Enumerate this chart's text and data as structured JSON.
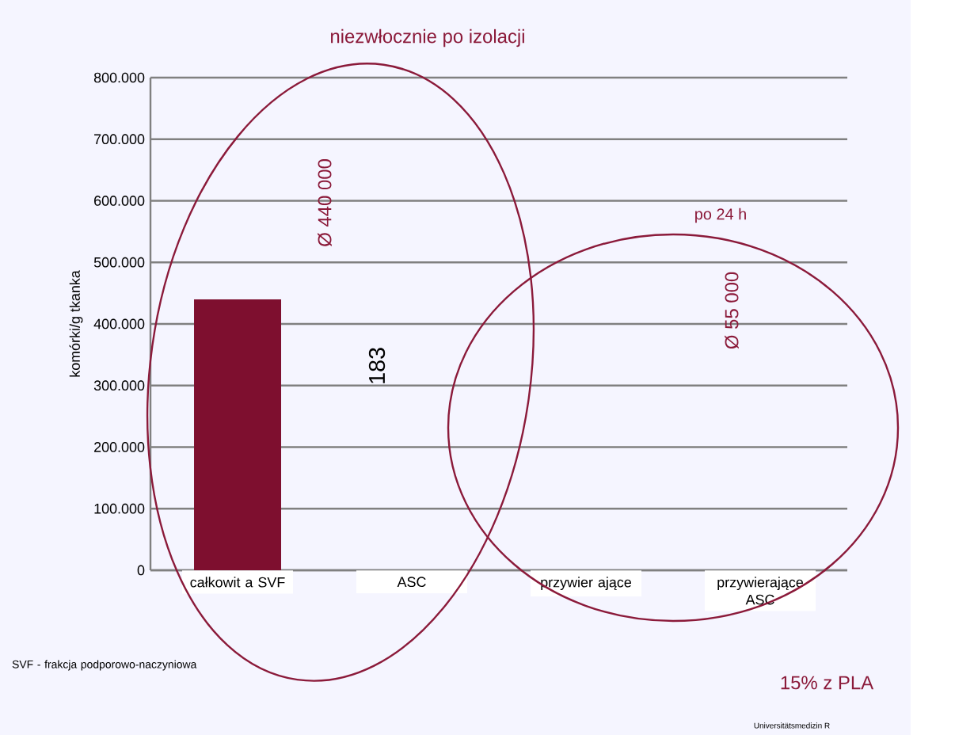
{
  "chart_data": {
    "type": "bar",
    "ylabel": "komórki/g tkanka",
    "categories": [
      "całkowit a SVF",
      "ASC",
      "przywier ające",
      "przywierające ASC"
    ],
    "values": [
      440000,
      null,
      null,
      null
    ],
    "color": "#7e0f2f",
    "ylim": [
      0,
      800000
    ],
    "yticks": [
      {
        "value": 0,
        "label": "0"
      },
      {
        "value": 100000,
        "label": "100.000"
      },
      {
        "value": 200000,
        "label": "200.000"
      },
      {
        "value": 300000,
        "label": "300.000"
      },
      {
        "value": 400000,
        "label": "400.000"
      },
      {
        "value": 500000,
        "label": "500.000"
      },
      {
        "value": 600000,
        "label": "600.000"
      },
      {
        "value": 700000,
        "label": "700.000"
      },
      {
        "value": 800000,
        "label": "800.000"
      }
    ],
    "grid": "y",
    "annotations": [
      "niezwłocznie po izolacji",
      "po 24 h",
      "Ø 440 000",
      "183",
      "Ø 55 000",
      "SVF - frakcja podporowo-naczyniowa",
      "15% z PLA",
      "Universitätsmedizin R"
    ]
  }
}
